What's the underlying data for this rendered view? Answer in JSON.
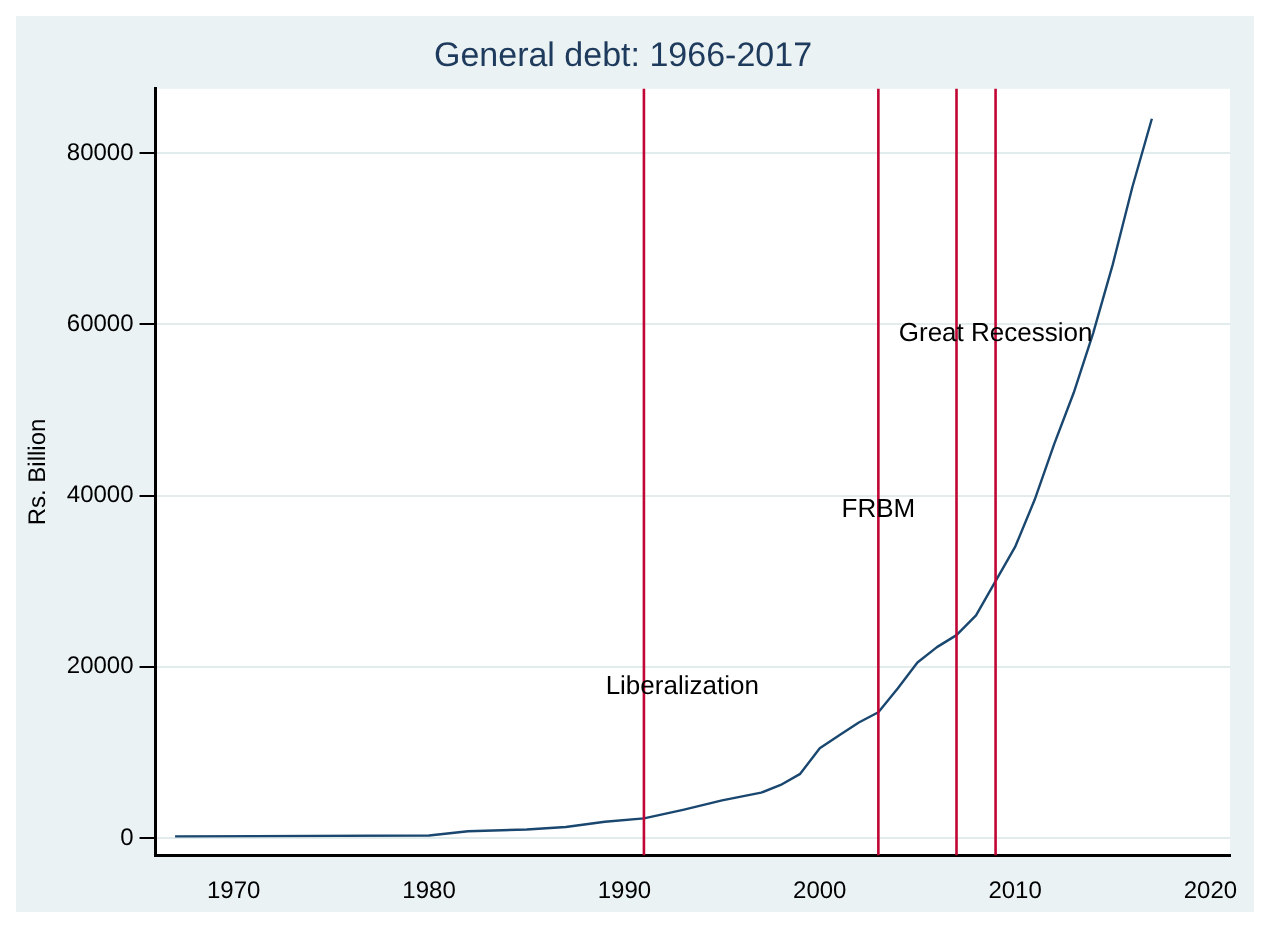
{
  "chart_data": {
    "type": "line",
    "title": "General debt: 1966-2017",
    "ylabel": "Rs. Billion",
    "series": [
      {
        "color": "#1a476f",
        "x": [
          1967,
          1980,
          1982,
          1985,
          1987,
          1989,
          1991,
          1993,
          1995,
          1997,
          1998,
          1999,
          2000,
          2001,
          2002,
          2003,
          2004,
          2005,
          2006,
          2007,
          2008,
          2009,
          2010,
          2011,
          2012,
          2013,
          2014,
          2015,
          2016,
          2017
        ],
        "values": [
          200,
          300,
          800,
          1000,
          1300,
          1900,
          2300,
          3300,
          4400,
          5300,
          6200,
          7500,
          10500,
          12000,
          13500,
          14700,
          17500,
          20500,
          22300,
          23700,
          26000,
          30000,
          34000,
          39500,
          46000,
          52000,
          59000,
          67000,
          76000,
          84000
        ]
      }
    ],
    "xlim": [
      1966,
      2021
    ],
    "xticks": [
      1970,
      1980,
      1990,
      2000,
      2010,
      2020
    ],
    "ylim": [
      -2000,
      87500
    ],
    "yticks": [
      0,
      20000,
      40000,
      60000,
      80000
    ],
    "grid": "y",
    "legend": false,
    "marker": "none",
    "line_style": "solid",
    "ref_lines": [
      {
        "axis": "x",
        "value": 1991,
        "color": "#c10534",
        "label": "Liberalization"
      },
      {
        "axis": "x",
        "value": 2003,
        "color": "#c10534",
        "label": "FRBM"
      },
      {
        "axis": "x",
        "value": 2007,
        "color": "#c10534"
      },
      {
        "axis": "x",
        "value": 2009,
        "color": "#c10534",
        "label": "Great Recession"
      }
    ]
  }
}
